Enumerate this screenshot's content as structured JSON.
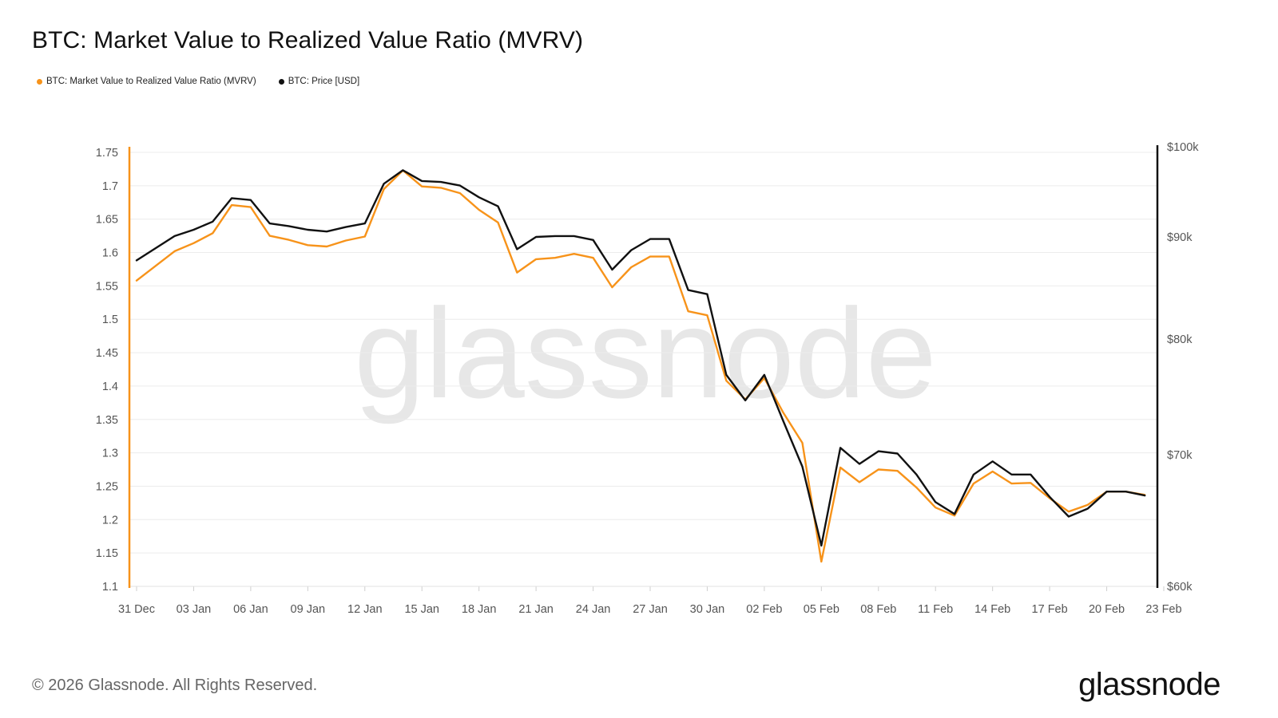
{
  "header": {
    "title": "BTC: Market Value to Realized Value Ratio (MVRV)"
  },
  "legend": [
    {
      "label": "BTC: Market Value to Realized Value Ratio (MVRV)",
      "color": "#f7931a"
    },
    {
      "label": "BTC: Price [USD]",
      "color": "#111111"
    }
  ],
  "footer": {
    "copyright": "© 2026 Glassnode. All Rights Reserved.",
    "brand": "glassnode",
    "watermark": "glassnode"
  },
  "chart_data": {
    "type": "line",
    "x_tick_labels": [
      "31 Dec",
      "03 Jan",
      "06 Jan",
      "09 Jan",
      "12 Jan",
      "15 Jan",
      "18 Jan",
      "21 Jan",
      "24 Jan",
      "27 Jan",
      "30 Jan",
      "02 Feb",
      "05 Feb",
      "08 Feb",
      "11 Feb",
      "14 Feb",
      "17 Feb",
      "20 Feb",
      "23 Feb"
    ],
    "x_range_days": [
      0,
      54
    ],
    "left_axis": {
      "ylim": [
        1.1,
        1.75
      ],
      "ticks": [
        "1.1",
        "1.15",
        "1.2",
        "1.25",
        "1.3",
        "1.35",
        "1.4",
        "1.45",
        "1.5",
        "1.55",
        "1.6",
        "1.65",
        "1.7",
        "1.75"
      ],
      "color": "#f7931a"
    },
    "right_axis": {
      "ylim": [
        60000,
        100000
      ],
      "ticks": [
        {
          "label": "$60k",
          "value": 60000
        },
        {
          "label": "$70k",
          "value": 70000
        },
        {
          "label": "$80k",
          "value": 80000
        },
        {
          "label": "$90k",
          "value": 90000
        },
        {
          "label": "$100k",
          "value": 100000
        }
      ],
      "color": "#111111"
    },
    "grid": true,
    "series": [
      {
        "name": "BTC: Market Value to Realized Value Ratio (MVRV)",
        "axis": "left",
        "color": "#f7931a",
        "x": [
          0,
          1,
          2,
          3,
          4,
          5,
          6,
          7,
          8,
          9,
          10,
          11,
          12,
          13,
          14,
          15,
          16,
          17,
          18,
          19,
          20,
          21,
          22,
          23,
          24,
          25,
          26,
          27,
          28,
          29,
          30,
          31,
          32,
          33,
          34,
          35,
          36,
          37,
          38,
          39,
          40,
          41,
          42,
          43,
          44,
          45,
          46,
          47,
          48,
          49,
          50,
          51,
          52,
          53
        ],
        "values": [
          1.558,
          1.58,
          1.602,
          1.614,
          1.629,
          1.671,
          1.668,
          1.625,
          1.619,
          1.611,
          1.609,
          1.618,
          1.624,
          1.695,
          1.723,
          1.699,
          1.697,
          1.689,
          1.664,
          1.645,
          1.57,
          1.59,
          1.592,
          1.598,
          1.592,
          1.548,
          1.578,
          1.594,
          1.594,
          1.512,
          1.506,
          1.408,
          1.38,
          1.412,
          1.36,
          1.315,
          1.137,
          1.278,
          1.256,
          1.275,
          1.273,
          1.248,
          1.218,
          1.206,
          1.254,
          1.272,
          1.254,
          1.255,
          1.232,
          1.212,
          1.222,
          1.242,
          1.242,
          1.237
        ]
      },
      {
        "name": "BTC: Price [USD]",
        "axis": "right",
        "color": "#111111",
        "x": [
          0,
          1,
          2,
          3,
          4,
          5,
          6,
          7,
          8,
          9,
          10,
          11,
          12,
          13,
          14,
          15,
          16,
          17,
          18,
          19,
          20,
          21,
          22,
          23,
          24,
          25,
          26,
          27,
          28,
          29,
          30,
          31,
          32,
          33,
          34,
          35,
          36,
          37,
          38,
          39,
          40,
          41,
          42,
          43,
          44,
          45,
          46,
          47,
          48,
          49,
          50,
          51,
          52,
          53
        ],
        "values": [
          87700,
          88900,
          90100,
          90800,
          91700,
          94300,
          94100,
          91500,
          91200,
          90800,
          90600,
          91100,
          91500,
          95900,
          97400,
          96200,
          96100,
          95700,
          94400,
          93400,
          88800,
          90000,
          90100,
          90100,
          89700,
          86800,
          88700,
          89800,
          89800,
          84800,
          84400,
          76900,
          74700,
          76900,
          72900,
          69100,
          63100,
          70600,
          69300,
          70300,
          70100,
          68500,
          66400,
          65500,
          68500,
          69500,
          68500,
          68500,
          66800,
          65300,
          65900,
          67200,
          67200,
          66900
        ]
      }
    ]
  }
}
